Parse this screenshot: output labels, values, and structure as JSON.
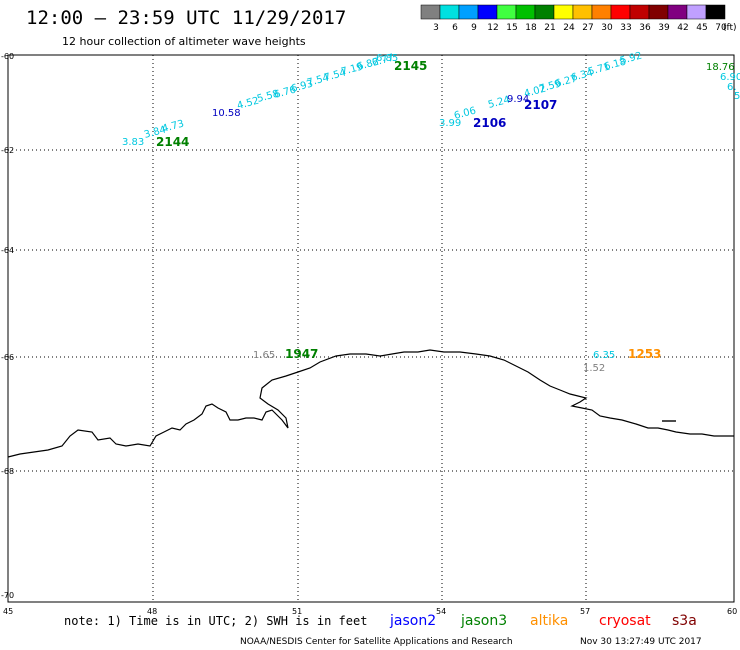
{
  "header": {
    "title": "12:00 — 23:59 UTC 11/29/2017",
    "subtitle": "12 hour collection of altimeter wave heights"
  },
  "legend": {
    "values": [
      "3",
      "6",
      "9",
      "12",
      "15",
      "18",
      "21",
      "24",
      "27",
      "30",
      "33",
      "36",
      "39",
      "42",
      "45",
      "70"
    ],
    "colors": [
      "#808080",
      "#00e0e0",
      "#00a0ff",
      "#0000ff",
      "#40ff40",
      "#00c000",
      "#008000",
      "#ffff00",
      "#ffc000",
      "#ff8000",
      "#ff0000",
      "#c00000",
      "#800000",
      "#800080",
      "#c0a0ff",
      "#000000"
    ],
    "unit": "(ft)"
  },
  "axes": {
    "lat_labels": [
      "-60",
      "-62",
      "-64",
      "-66",
      "-68",
      "-70"
    ],
    "lon_labels": [
      "45",
      "48",
      "51",
      "54",
      "57",
      "60"
    ]
  },
  "observations": [
    {
      "text": "3.83",
      "color": "#00c8e0"
    },
    {
      "text": "3.84",
      "color": "#00c8e0"
    },
    {
      "text": "4.73",
      "color": "#00c8e0"
    },
    {
      "text": "2144",
      "color": "#008000",
      "kind": "time"
    },
    {
      "text": "10.58",
      "color": "#0000c0"
    },
    {
      "text": "4.52",
      "color": "#00c8e0"
    },
    {
      "text": "5.58",
      "color": "#00c8e0"
    },
    {
      "text": "6.76",
      "color": "#00c8e0"
    },
    {
      "text": "6.93",
      "color": "#00c8e0"
    },
    {
      "text": "7.54",
      "color": "#00c8e0"
    },
    {
      "text": "7.54",
      "color": "#00c8e0"
    },
    {
      "text": "7.19",
      "color": "#00c8e0"
    },
    {
      "text": "6.82",
      "color": "#00c8e0"
    },
    {
      "text": "6.77",
      "color": "#00c8e0"
    },
    {
      "text": "6.85",
      "color": "#00c8e0"
    },
    {
      "text": "2145",
      "color": "#008000",
      "kind": "time"
    },
    {
      "text": "3.99",
      "color": "#00c8e0"
    },
    {
      "text": "6.06",
      "color": "#00c8e0"
    },
    {
      "text": "2106",
      "color": "#0000c0",
      "kind": "time"
    },
    {
      "text": "5.24",
      "color": "#00c8e0"
    },
    {
      "text": "9.94",
      "color": "#0000c0"
    },
    {
      "text": "4.02",
      "color": "#00c8e0"
    },
    {
      "text": "2107",
      "color": "#0000c0",
      "kind": "time"
    },
    {
      "text": "7.59",
      "color": "#00c8e0"
    },
    {
      "text": "6.27",
      "color": "#00c8e0"
    },
    {
      "text": "6.34",
      "color": "#00c8e0"
    },
    {
      "text": "5.71",
      "color": "#00c8e0"
    },
    {
      "text": "6.18",
      "color": "#00c8e0"
    },
    {
      "text": "5.92",
      "color": "#00c8e0"
    },
    {
      "text": "18.76",
      "color": "#008000"
    },
    {
      "text": "6.90",
      "color": "#00c8e0"
    },
    {
      "text": "6.",
      "color": "#00c8e0"
    },
    {
      "text": "5",
      "color": "#00c8e0"
    },
    {
      "text": "1.65",
      "color": "#808080"
    },
    {
      "text": "1947",
      "color": "#008000",
      "kind": "time"
    },
    {
      "text": "6.35",
      "color": "#00c8e0"
    },
    {
      "text": "1253",
      "color": "#ff9000",
      "kind": "time"
    },
    {
      "text": "1.52",
      "color": "#808080"
    }
  ],
  "footer": {
    "note": "note: 1) Time is in UTC; 2) SWH is in feet",
    "satellites": [
      {
        "name": "jason2",
        "color": "#0000ff"
      },
      {
        "name": "jason3",
        "color": "#008000"
      },
      {
        "name": "altika",
        "color": "#ff9000"
      },
      {
        "name": "cryosat",
        "color": "#ff0000"
      },
      {
        "name": "s3a",
        "color": "#800000"
      }
    ],
    "credit": "NOAA/NESDIS Center for Satellite Applications and Research",
    "timestamp": "Nov 30 13:27:49 UTC 2017"
  }
}
